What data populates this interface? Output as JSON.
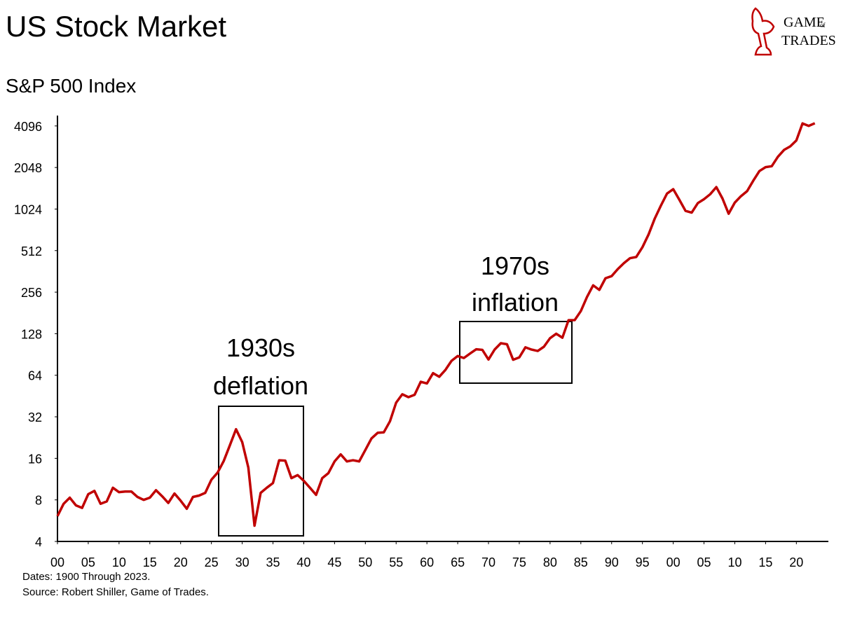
{
  "chart_data": {
    "type": "line",
    "title": "US Stock Market",
    "subtitle": "S&P 500 Index",
    "logo": [
      "GAME",
      "of",
      "TRADES"
    ],
    "notes": [
      "Dates: 1900 Through 2023.",
      "Source: Robert Shiller, Game of Trades."
    ],
    "annotations": [
      {
        "lines": [
          "1930s",
          "deflation"
        ]
      },
      {
        "lines": [
          "1970s",
          "inflation"
        ]
      }
    ],
    "yscale": "log",
    "grid": false,
    "xlim": [
      1900,
      2025.2
    ],
    "ylim": [
      4,
      4870
    ],
    "xticks": [
      {
        "value": 1900,
        "label": "00"
      },
      {
        "value": 1905,
        "label": "05"
      },
      {
        "value": 1910,
        "label": "10"
      },
      {
        "value": 1915,
        "label": "15"
      },
      {
        "value": 1920,
        "label": "20"
      },
      {
        "value": 1925,
        "label": "25"
      },
      {
        "value": 1930,
        "label": "30"
      },
      {
        "value": 1935,
        "label": "35"
      },
      {
        "value": 1940,
        "label": "40"
      },
      {
        "value": 1945,
        "label": "45"
      },
      {
        "value": 1950,
        "label": "50"
      },
      {
        "value": 1955,
        "label": "55"
      },
      {
        "value": 1960,
        "label": "60"
      },
      {
        "value": 1965,
        "label": "65"
      },
      {
        "value": 1970,
        "label": "70"
      },
      {
        "value": 1975,
        "label": "75"
      },
      {
        "value": 1980,
        "label": "80"
      },
      {
        "value": 1985,
        "label": "85"
      },
      {
        "value": 1990,
        "label": "90"
      },
      {
        "value": 1995,
        "label": "95"
      },
      {
        "value": 2000,
        "label": "00"
      },
      {
        "value": 2005,
        "label": "05"
      },
      {
        "value": 2010,
        "label": "10"
      },
      {
        "value": 2015,
        "label": "15"
      },
      {
        "value": 2020,
        "label": "20"
      }
    ],
    "yticks": [
      4,
      8,
      16,
      32,
      64,
      128,
      256,
      512,
      1024,
      2048,
      4096
    ],
    "x": [
      1900,
      1901,
      1902,
      1903,
      1904,
      1905,
      1906,
      1907,
      1908,
      1909,
      1910,
      1911,
      1912,
      1913,
      1914,
      1915,
      1916,
      1917,
      1918,
      1919,
      1920,
      1921,
      1922,
      1923,
      1924,
      1925,
      1926,
      1927,
      1928,
      1929,
      1930,
      1931,
      1932,
      1933,
      1934,
      1935,
      1936,
      1937,
      1938,
      1939,
      1940,
      1941,
      1942,
      1943,
      1944,
      1945,
      1946,
      1947,
      1948,
      1949,
      1950,
      1951,
      1952,
      1953,
      1954,
      1955,
      1956,
      1957,
      1958,
      1959,
      1960,
      1961,
      1962,
      1963,
      1964,
      1965,
      1966,
      1967,
      1968,
      1969,
      1970,
      1971,
      1972,
      1973,
      1974,
      1975,
      1976,
      1977,
      1978,
      1979,
      1980,
      1981,
      1982,
      1983,
      1984,
      1985,
      1986,
      1987,
      1988,
      1989,
      1990,
      1991,
      1992,
      1993,
      1994,
      1995,
      1996,
      1997,
      1998,
      1999,
      2000,
      2001,
      2002,
      2003,
      2004,
      2005,
      2006,
      2007,
      2008,
      2009,
      2010,
      2011,
      2012,
      2013,
      2014,
      2015,
      2016,
      2017,
      2018,
      2019,
      2020,
      2021,
      2022,
      2023
    ],
    "series": [
      {
        "name": "S&P 500 Index",
        "color": "#c00000",
        "values": [
          6.1,
          7.5,
          8.3,
          7.3,
          7.0,
          8.8,
          9.3,
          7.5,
          7.8,
          9.8,
          9.1,
          9.2,
          9.2,
          8.4,
          8.0,
          8.3,
          9.4,
          8.5,
          7.6,
          8.9,
          7.9,
          6.9,
          8.4,
          8.6,
          9.0,
          11.2,
          12.6,
          15.3,
          19.9,
          26.0,
          21.0,
          13.7,
          5.2,
          9.0,
          9.8,
          10.6,
          15.5,
          15.4,
          11.5,
          12.1,
          11.0,
          9.8,
          8.7,
          11.5,
          12.5,
          15.2,
          17.1,
          15.2,
          15.5,
          15.2,
          18.4,
          22.3,
          24.5,
          24.7,
          29.7,
          40.5,
          46.6,
          44.4,
          46.2,
          57.4,
          55.8,
          66.3,
          62.4,
          69.9,
          81.4,
          88.2,
          85.3,
          91.9,
          98.7,
          97.8,
          83.2,
          98.3,
          109.2,
          107.4,
          82.9,
          86.2,
          102.0,
          98.2,
          96.0,
          103.0,
          118.8,
          128.0,
          119.7,
          160.4,
          160.5,
          186.8,
          236.3,
          286.8,
          265.8,
          322.8,
          334.6,
          376.2,
          415.7,
          451.4,
          460.4,
          541.7,
          670.5,
          873.4,
          1085,
          1327,
          1427,
          1194,
          993,
          965,
          1131,
          1207,
          1311,
          1477,
          1221,
          947,
          1140,
          1269,
          1380,
          1643,
          1931,
          2061,
          2092,
          2449,
          2746,
          2913,
          3218,
          4273,
          4099,
          4285
        ]
      }
    ]
  }
}
